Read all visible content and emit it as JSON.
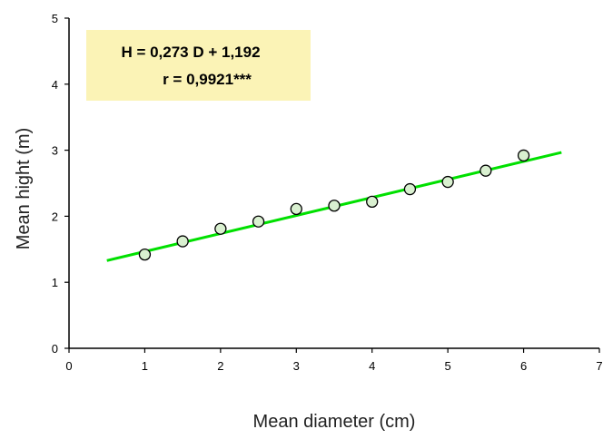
{
  "chart_data": {
    "type": "scatter",
    "title": "",
    "xlabel": "Mean diameter  (cm)",
    "ylabel": "Mean hight (m)",
    "xlim": [
      0,
      7
    ],
    "ylim": [
      0,
      5
    ],
    "x_ticks": [
      0,
      1,
      2,
      3,
      4,
      5,
      6,
      7
    ],
    "y_ticks": [
      0,
      1,
      2,
      3,
      4,
      5
    ],
    "grid": false,
    "series": [
      {
        "x": [
          1,
          1.5,
          2,
          2.5,
          3,
          3.5,
          4,
          4.5,
          5,
          5.5,
          6
        ],
        "y": [
          1.42,
          1.62,
          1.81,
          1.92,
          2.11,
          2.16,
          2.22,
          2.41,
          2.52,
          2.69,
          2.92
        ],
        "marker": "circle",
        "marker_fill": "#d9f0d0",
        "marker_edge": "#000000"
      }
    ],
    "trendline": {
      "slope": 0.273,
      "intercept": 1.192,
      "x_range": [
        0.5,
        6.5
      ],
      "color": "#00e000"
    },
    "annotation": {
      "line1": "H = 0,273 D + 1,192",
      "line2": "r = 0,9921***",
      "background": "#fbf3b6"
    }
  }
}
